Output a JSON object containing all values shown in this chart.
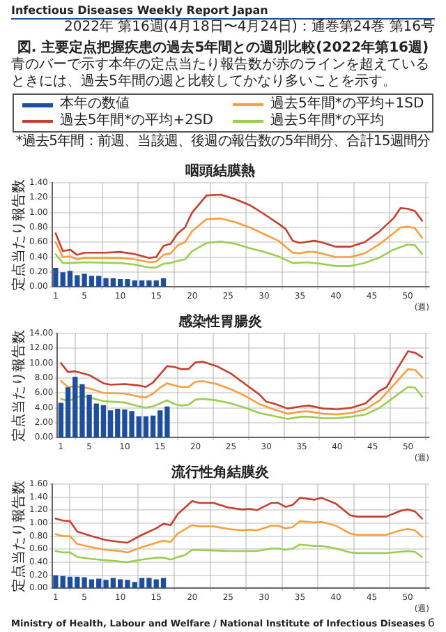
{
  "chart_data": [
    {
      "type": "line",
      "title": "咽頭結膜熱",
      "ylabel": "定点当たり報告数",
      "xlabel": "(週)",
      "legend": "top",
      "grid": true,
      "marker": "none",
      "line_style": "solid",
      "annotations": [
        "Infectious Diseases Weekly Report Japan",
        "2022年 第16週(4月18日〜4月24日)：通巻第24巻 第16号",
        "図. 主要定点把握疾患の過去5年間との週別比較(2022年第16週)",
        "青のバーで示す本年の定点当たり報告数が赤のラインを超えているときには、過去5年間の週と比較してかなり多いことを示す。",
        "*過去5年間：前週、当該週、後週の報告数の5年間分、合計15週間分",
        "Ministry of Health, Labour and Welfare / National Institute of Infectious Diseases",
        "6"
      ],
      "xlim": [
        0.5,
        53
      ],
      "xticks": [
        1,
        5,
        10,
        15,
        20,
        25,
        30,
        35,
        40,
        45,
        50
      ],
      "ylim": [
        0,
        1.4
      ],
      "yticks": [
        {
          "value": 0,
          "label": "0.00"
        },
        {
          "value": 0.2,
          "label": "0.20"
        },
        {
          "value": 0.4,
          "label": "0.40"
        },
        {
          "value": 0.6,
          "label": "0.60"
        },
        {
          "value": 0.8,
          "label": "0.80"
        },
        {
          "value": 1,
          "label": "1.00"
        },
        {
          "value": 1.2,
          "label": "1.20"
        },
        {
          "value": 1.4,
          "label": "1.40"
        }
      ],
      "series": [
        {
          "name": "本年の数値",
          "type": "bar",
          "color": "#1f4e9c",
          "x": [
            1,
            2,
            3,
            4,
            5,
            6,
            7,
            8,
            9,
            10,
            11,
            12,
            13,
            14,
            15,
            16
          ],
          "values": [
            0.25,
            0.19,
            0.21,
            0.15,
            0.17,
            0.14,
            0.14,
            0.11,
            0.11,
            0.1,
            0.1,
            0.08,
            0.08,
            0.08,
            0.08,
            0.11
          ]
        },
        {
          "name": "過去5年間*の平均+1SD",
          "color": "#f5a040",
          "x": [
            1,
            2,
            3,
            4,
            5,
            10,
            12,
            14,
            15,
            16,
            17,
            18,
            19,
            20,
            22,
            24,
            26,
            28,
            30,
            32,
            34,
            35,
            36,
            37,
            38,
            40,
            42,
            44,
            46,
            48,
            49,
            50,
            51,
            52
          ],
          "values": [
            0.6,
            0.4,
            0.41,
            0.37,
            0.39,
            0.39,
            0.37,
            0.33,
            0.34,
            0.43,
            0.45,
            0.56,
            0.6,
            0.75,
            0.91,
            0.92,
            0.87,
            0.8,
            0.71,
            0.62,
            0.46,
            0.45,
            0.47,
            0.47,
            0.45,
            0.4,
            0.4,
            0.45,
            0.57,
            0.72,
            0.8,
            0.81,
            0.79,
            0.66
          ]
        },
        {
          "name": "過去5年間*の平均+2SD",
          "color": "#c4402f",
          "x": [
            1,
            2,
            3,
            4,
            5,
            8,
            10,
            12,
            14,
            15,
            16,
            17,
            18,
            19,
            20,
            22,
            24,
            26,
            28,
            30,
            32,
            33,
            34,
            35,
            37,
            38,
            40,
            42,
            44,
            46,
            48,
            49,
            50,
            51,
            52
          ],
          "values": [
            0.72,
            0.48,
            0.5,
            0.43,
            0.46,
            0.46,
            0.47,
            0.44,
            0.39,
            0.4,
            0.55,
            0.58,
            0.72,
            0.8,
            1.0,
            1.23,
            1.24,
            1.18,
            1.1,
            0.98,
            0.85,
            0.78,
            0.62,
            0.59,
            0.62,
            0.6,
            0.54,
            0.54,
            0.6,
            0.74,
            0.92,
            1.06,
            1.05,
            1.02,
            0.89
          ]
        },
        {
          "name": "過去5年間*の平均",
          "color": "#9acd50",
          "x": [
            1,
            2,
            3,
            5,
            10,
            12,
            14,
            15,
            16,
            17,
            18,
            19,
            20,
            22,
            24,
            26,
            28,
            30,
            32,
            34,
            36,
            38,
            40,
            42,
            44,
            46,
            48,
            50,
            51,
            52
          ],
          "values": [
            0.44,
            0.32,
            0.32,
            0.33,
            0.32,
            0.3,
            0.26,
            0.26,
            0.31,
            0.32,
            0.35,
            0.37,
            0.48,
            0.59,
            0.61,
            0.58,
            0.52,
            0.47,
            0.41,
            0.32,
            0.33,
            0.31,
            0.28,
            0.28,
            0.32,
            0.39,
            0.5,
            0.57,
            0.56,
            0.44
          ]
        }
      ]
    },
    {
      "type": "line",
      "title": "感染性胃腸炎",
      "ylabel": "定点当たり報告数",
      "xlabel": "(週)",
      "grid": true,
      "marker": "none",
      "line_style": "solid",
      "xlim": [
        0.5,
        53
      ],
      "xticks": [
        1,
        5,
        10,
        15,
        20,
        25,
        30,
        35,
        40,
        45,
        50
      ],
      "ylim": [
        0,
        14
      ],
      "yticks": [
        {
          "value": 0,
          "label": "0.00"
        },
        {
          "value": 2,
          "label": "2.00"
        },
        {
          "value": 4,
          "label": "4.00"
        },
        {
          "value": 6,
          "label": "6.00"
        },
        {
          "value": 8,
          "label": "8.00"
        },
        {
          "value": 10,
          "label": "10.00"
        },
        {
          "value": 12,
          "label": "12.00"
        },
        {
          "value": 14,
          "label": "14.00"
        }
      ],
      "series": [
        {
          "type": "bar",
          "color": "#1f4e9c",
          "x": [
            1,
            2,
            3,
            4,
            5,
            6,
            7,
            8,
            9,
            10,
            11,
            12,
            13,
            14,
            15,
            16
          ],
          "values": [
            4.6,
            6.7,
            8.1,
            7.1,
            5.7,
            4.5,
            4.3,
            3.6,
            3.8,
            3.7,
            3.5,
            2.8,
            2.8,
            2.9,
            3.6,
            4.1
          ]
        },
        {
          "color": "#f5a040",
          "x": [
            1,
            2,
            3,
            5,
            7,
            10,
            12,
            13,
            14,
            15,
            16,
            17,
            18,
            19,
            20,
            21,
            23,
            25,
            27,
            29,
            31,
            33,
            35,
            36,
            38,
            40,
            42,
            44,
            46,
            48,
            50,
            51,
            52
          ],
          "values": [
            7.6,
            6.8,
            6.9,
            6.6,
            6.0,
            5.9,
            5.5,
            5.4,
            5.9,
            6.7,
            7.3,
            7.0,
            6.8,
            6.8,
            7.5,
            7.6,
            7.2,
            6.5,
            5.6,
            4.5,
            3.8,
            3.2,
            3.5,
            3.5,
            3.2,
            3.1,
            3.3,
            3.8,
            5.0,
            7.1,
            9.2,
            9.1,
            8.1
          ]
        },
        {
          "color": "#c4402f",
          "x": [
            1,
            2,
            3,
            5,
            7,
            8,
            10,
            12,
            13,
            14,
            15,
            16,
            17,
            18,
            19,
            20,
            21,
            23,
            25,
            27,
            29,
            30,
            31,
            33,
            35,
            36,
            38,
            40,
            42,
            44,
            46,
            47,
            48,
            50,
            51,
            52
          ],
          "values": [
            10.0,
            8.8,
            8.9,
            8.4,
            7.3,
            7.1,
            7.2,
            7.0,
            6.8,
            7.4,
            8.5,
            9.6,
            9.5,
            9.2,
            9.2,
            10.1,
            10.2,
            9.6,
            8.6,
            7.2,
            5.8,
            4.8,
            4.6,
            3.9,
            4.2,
            4.3,
            3.9,
            3.8,
            4.0,
            4.6,
            6.3,
            6.8,
            8.5,
            11.6,
            11.4,
            10.8
          ]
        },
        {
          "color": "#9acd50",
          "x": [
            1,
            2,
            3,
            4,
            5,
            7,
            10,
            12,
            13,
            14,
            15,
            16,
            17,
            18,
            19,
            20,
            21,
            23,
            25,
            27,
            29,
            31,
            33,
            35,
            36,
            38,
            40,
            42,
            44,
            46,
            48,
            50,
            51,
            52
          ],
          "values": [
            5.2,
            4.9,
            5.3,
            5.6,
            5.4,
            4.9,
            4.7,
            4.2,
            4.0,
            4.2,
            4.6,
            5.0,
            4.5,
            4.3,
            4.4,
            5.1,
            5.2,
            5.0,
            4.6,
            4.0,
            3.3,
            2.9,
            2.5,
            2.8,
            2.8,
            2.6,
            2.6,
            2.8,
            3.1,
            4.0,
            5.4,
            6.8,
            6.7,
            5.5
          ]
        }
      ]
    },
    {
      "type": "line",
      "title": "流行性角結膜炎",
      "ylabel": "定点当たり報告数",
      "xlabel": "(週)",
      "grid": true,
      "marker": "none",
      "line_style": "solid",
      "xlim": [
        0.5,
        53
      ],
      "xticks": [
        1,
        5,
        10,
        15,
        20,
        25,
        30,
        35,
        40,
        45,
        50
      ],
      "ylim": [
        0,
        1.6
      ],
      "yticks": [
        {
          "value": 0,
          "label": "0.00"
        },
        {
          "value": 0.2,
          "label": "0.20"
        },
        {
          "value": 0.4,
          "label": "0.40"
        },
        {
          "value": 0.6,
          "label": "0.60"
        },
        {
          "value": 0.8,
          "label": "0.80"
        },
        {
          "value": 1,
          "label": "1.00"
        },
        {
          "value": 1.2,
          "label": "1.20"
        },
        {
          "value": 1.4,
          "label": "1.40"
        },
        {
          "value": 1.6,
          "label": "1.60"
        }
      ],
      "series": [
        {
          "type": "bar",
          "color": "#1f4e9c",
          "x": [
            1,
            2,
            3,
            4,
            5,
            6,
            7,
            8,
            9,
            10,
            11,
            12,
            13,
            14,
            15,
            16
          ],
          "values": [
            0.19,
            0.18,
            0.17,
            0.17,
            0.16,
            0.13,
            0.14,
            0.12,
            0.15,
            0.13,
            0.12,
            0.09,
            0.15,
            0.15,
            0.13,
            0.15
          ]
        },
        {
          "color": "#f5a040",
          "x": [
            1,
            2,
            3,
            4,
            6,
            8,
            10,
            11,
            13,
            15,
            16,
            17,
            18,
            20,
            21,
            23,
            25,
            27,
            28,
            29,
            31,
            32,
            33,
            34,
            35,
            37,
            38,
            40,
            42,
            43,
            47,
            49,
            50,
            51,
            52
          ],
          "values": [
            0.83,
            0.8,
            0.8,
            0.68,
            0.63,
            0.59,
            0.57,
            0.55,
            0.63,
            0.7,
            0.73,
            0.71,
            0.84,
            0.97,
            0.95,
            0.95,
            0.91,
            0.89,
            0.9,
            0.89,
            0.96,
            0.96,
            0.92,
            0.94,
            1.03,
            1.01,
            1.02,
            0.96,
            0.84,
            0.82,
            0.82,
            0.89,
            0.91,
            0.89,
            0.79
          ]
        },
        {
          "color": "#c4402f",
          "x": [
            1,
            2,
            3,
            4,
            6,
            8,
            10,
            11,
            13,
            15,
            16,
            17,
            18,
            20,
            21,
            23,
            25,
            27,
            28,
            29,
            31,
            32,
            33,
            34,
            35,
            37,
            38,
            40,
            42,
            43,
            47,
            49,
            50,
            51,
            52
          ],
          "values": [
            1.07,
            1.04,
            1.03,
            0.87,
            0.8,
            0.74,
            0.71,
            0.7,
            0.82,
            0.92,
            0.99,
            0.97,
            1.14,
            1.34,
            1.31,
            1.31,
            1.24,
            1.21,
            1.22,
            1.2,
            1.31,
            1.31,
            1.25,
            1.28,
            1.39,
            1.36,
            1.39,
            1.3,
            1.12,
            1.1,
            1.1,
            1.19,
            1.21,
            1.18,
            1.07
          ]
        },
        {
          "color": "#9acd50",
          "x": [
            1,
            2,
            3,
            4,
            6,
            8,
            10,
            11,
            13,
            15,
            16,
            17,
            18,
            19,
            20,
            23,
            25,
            28,
            29,
            31,
            32,
            33,
            34,
            35,
            37,
            38,
            40,
            42,
            43,
            47,
            49,
            50,
            51,
            52
          ],
          "values": [
            0.57,
            0.55,
            0.55,
            0.48,
            0.45,
            0.43,
            0.41,
            0.4,
            0.44,
            0.47,
            0.47,
            0.44,
            0.48,
            0.51,
            0.59,
            0.58,
            0.57,
            0.57,
            0.57,
            0.61,
            0.61,
            0.59,
            0.61,
            0.67,
            0.65,
            0.65,
            0.61,
            0.55,
            0.54,
            0.54,
            0.56,
            0.57,
            0.56,
            0.48
          ]
        }
      ]
    }
  ]
}
